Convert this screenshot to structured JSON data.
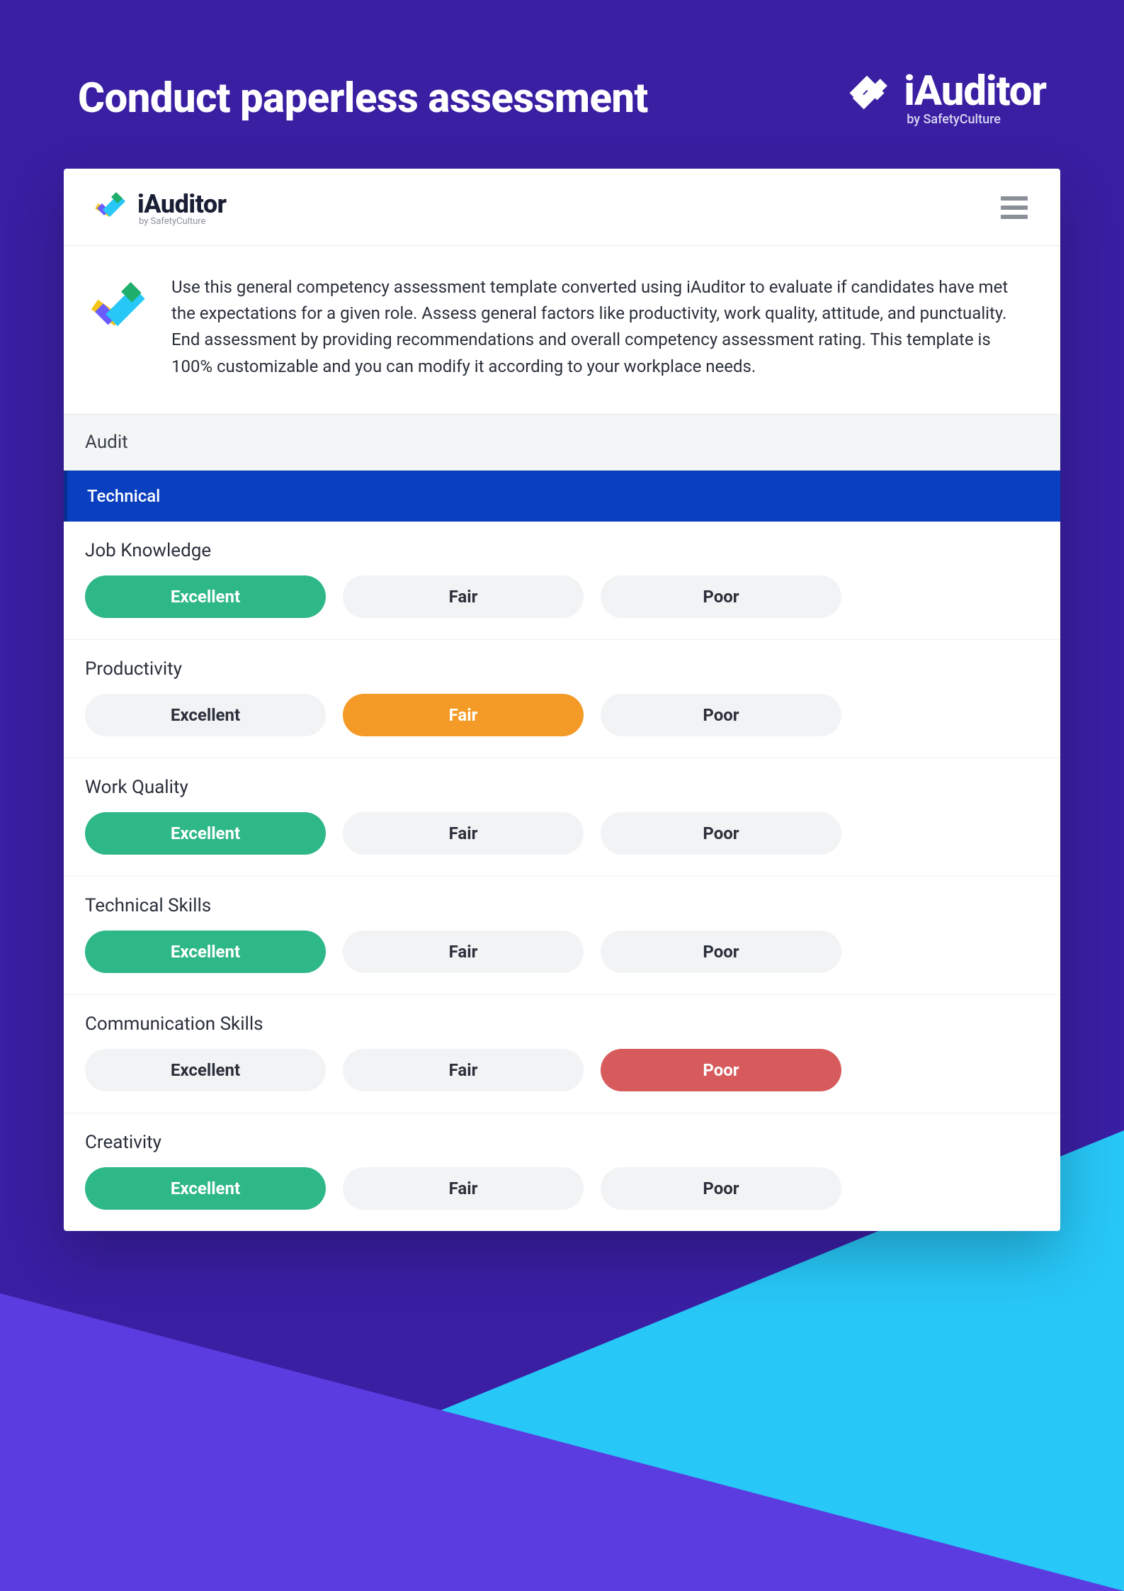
{
  "colors": {
    "page_bg": "#3a1fa3",
    "triangle_cyan": "#27c7f7",
    "triangle_purple": "#5b3ce0",
    "card_bg": "#ffffff",
    "section_bar_bg": "#0a3fbf",
    "section_bar_border": "#072e8f",
    "tab_bg": "#f4f5f6",
    "opt_default_bg": "#f2f3f4",
    "opt_excellent": "#2fb887",
    "opt_fair": "#f39b26",
    "opt_poor": "#d75a5d",
    "text_primary": "#2a2f3a",
    "hamburger": "#8a8f98"
  },
  "hero": {
    "title": "Conduct paperless assessment",
    "brand_name": "iAuditor",
    "brand_sub": "by SafetyCulture"
  },
  "card": {
    "brand_name": "iAuditor",
    "brand_sub": "by SafetyCulture",
    "intro_text": "Use this general competency assessment template converted using iAuditor to evaluate if candidates have met the expectations for a given role. Assess general factors like productivity, work quality, attitude, and punctuality. End assessment by providing recommendations and overall competency assessment rating. This template is 100% customizable and you can modify it according to your workplace needs.",
    "tab_label": "Audit",
    "section_label": "Technical"
  },
  "option_labels": {
    "excellent": "Excellent",
    "fair": "Fair",
    "poor": "Poor"
  },
  "questions": [
    {
      "title": "Job Knowledge",
      "selected": "excellent"
    },
    {
      "title": "Productivity",
      "selected": "fair"
    },
    {
      "title": "Work Quality",
      "selected": "excellent"
    },
    {
      "title": "Technical Skills",
      "selected": "excellent"
    },
    {
      "title": "Communication Skills",
      "selected": "poor"
    },
    {
      "title": "Creativity",
      "selected": "excellent"
    }
  ]
}
